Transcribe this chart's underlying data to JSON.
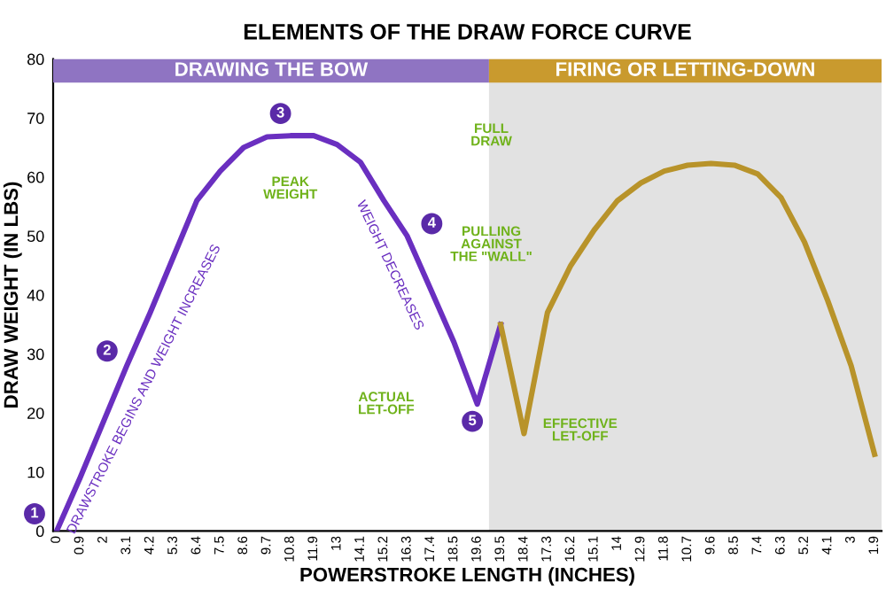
{
  "chart_data": {
    "type": "line",
    "title": "ELEMENTS OF THE DRAW FORCE CURVE",
    "xlabel": "POWERSTROKE LENGTH (INCHES)",
    "ylabel": "DRAW WEIGHT (IN LBS)",
    "categories": [
      "0",
      "0.9",
      "2",
      "3.1",
      "4.2",
      "5.3",
      "6.4",
      "7.5",
      "8.6",
      "9.7",
      "10.8",
      "11.9",
      "13",
      "14.1",
      "15.2",
      "16.3",
      "17.4",
      "18.5",
      "19.6",
      "19.5",
      "18.4",
      "17.3",
      "16.2",
      "15.1",
      "14",
      "12.9",
      "11.8",
      "10.7",
      "9.6",
      "8.5",
      "7.4",
      "6.3",
      "5.2",
      "4.1",
      "3",
      "1.9"
    ],
    "series": [
      {
        "color": "#6a2fc0",
        "values": [
          0,
          9,
          18.5,
          28,
          37,
          46.5,
          56,
          61,
          65,
          66.8,
          67,
          67,
          65.5,
          62.5,
          56,
          50,
          41,
          32,
          21.5,
          35,
          null,
          null,
          null,
          null,
          null,
          null,
          null,
          null,
          null,
          null,
          null,
          null,
          null,
          null,
          null,
          null
        ]
      },
      {
        "color": "#b8932a",
        "values": [
          null,
          null,
          null,
          null,
          null,
          null,
          null,
          null,
          null,
          null,
          null,
          null,
          null,
          null,
          null,
          null,
          null,
          null,
          null,
          35,
          16.5,
          37,
          45,
          51,
          56,
          59,
          61,
          62,
          62.3,
          62,
          60.5,
          56.5,
          49,
          39,
          28,
          13
        ]
      }
    ],
    "ylim": [
      0,
      80
    ],
    "yticks": [
      0,
      10,
      20,
      30,
      40,
      50,
      60,
      70,
      80
    ],
    "grid": false,
    "legend": false,
    "marker": "none",
    "line_style": "solid",
    "bands": [
      {
        "axis": "x",
        "from": "19.5",
        "to": "1.9",
        "color": "#e2e2e2"
      },
      {
        "axis": "x",
        "from": "0",
        "to": "19.6",
        "label": "DRAWING THE BOW",
        "color": "#8f74c2"
      },
      {
        "axis": "x",
        "from": "19.5",
        "to": "1.9",
        "label": "FIRING OR LETTING-DOWN",
        "color": "#c99a2e"
      }
    ],
    "annotations": [
      {
        "text": "1",
        "x": "0",
        "y": 0
      },
      {
        "text": "2",
        "x": "3.1",
        "y": 28
      },
      {
        "text": "3",
        "x": "10.8",
        "y": 67
      },
      {
        "text": "4",
        "x": "16.3",
        "y": 50
      },
      {
        "text": "5",
        "x": "19.6",
        "y": 21.5
      },
      "DRAWSTROKE BEGINS AND WEIGHT INCREASES",
      "PEAK WEIGHT",
      "WEIGHT DECREASES",
      "ACTUAL LET-OFF",
      "FULL DRAW",
      "PULLING AGAINST THE \"WALL\"",
      "EFFECTIVE LET-OFF"
    ]
  }
}
